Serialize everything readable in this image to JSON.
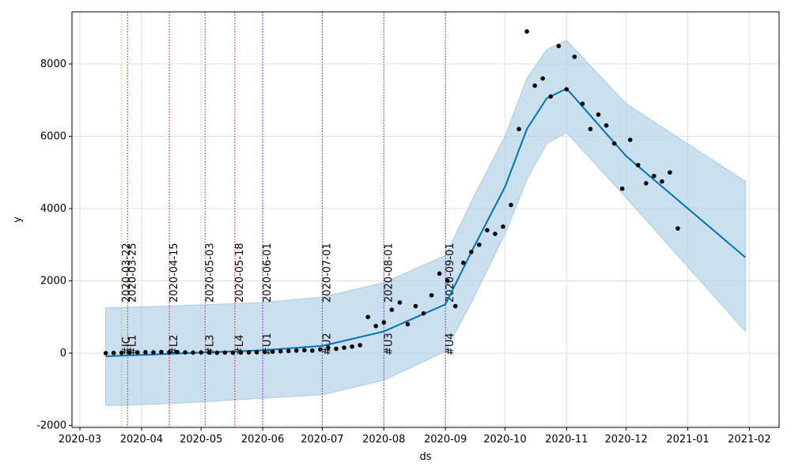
{
  "chart_data": {
    "type": "forecast",
    "xlabel": "ds",
    "ylabel": "y",
    "xlim": [
      "2020-02-26",
      "2021-02-16"
    ],
    "xticks": [
      {
        "value": "2020-03-01",
        "label": "2020-03"
      },
      {
        "value": "2020-04-01",
        "label": "2020-04"
      },
      {
        "value": "2020-05-01",
        "label": "2020-05"
      },
      {
        "value": "2020-06-01",
        "label": "2020-06"
      },
      {
        "value": "2020-07-01",
        "label": "2020-07"
      },
      {
        "value": "2020-08-01",
        "label": "2020-08"
      },
      {
        "value": "2020-09-01",
        "label": "2020-09"
      },
      {
        "value": "2020-10-01",
        "label": "2020-10"
      },
      {
        "value": "2020-11-01",
        "label": "2020-11"
      },
      {
        "value": "2020-12-01",
        "label": "2020-12"
      },
      {
        "value": "2021-01-01",
        "label": "2021-01"
      },
      {
        "value": "2021-02-01",
        "label": "2021-02"
      }
    ],
    "ylim": [
      -2055,
      9443
    ],
    "yticks": [
      -2000,
      0,
      2000,
      4000,
      6000,
      8000
    ],
    "grid": true,
    "point_color": "#000000",
    "x": [
      "2020-03-14",
      "2020-03-18",
      "2020-03-22",
      "2020-03-26",
      "2020-03-30",
      "2020-04-03",
      "2020-04-07",
      "2020-04-11",
      "2020-04-15",
      "2020-04-19",
      "2020-04-23",
      "2020-04-27",
      "2020-05-01",
      "2020-05-05",
      "2020-05-09",
      "2020-05-13",
      "2020-05-17",
      "2020-05-21",
      "2020-05-25",
      "2020-05-29",
      "2020-06-02",
      "2020-06-06",
      "2020-06-10",
      "2020-06-14",
      "2020-06-18",
      "2020-06-22",
      "2020-06-26",
      "2020-06-30",
      "2020-07-04",
      "2020-07-08",
      "2020-07-12",
      "2020-07-16",
      "2020-07-20",
      "2020-07-24",
      "2020-07-28",
      "2020-08-01",
      "2020-08-05",
      "2020-08-09",
      "2020-08-13",
      "2020-08-17",
      "2020-08-21",
      "2020-08-25",
      "2020-08-29",
      "2020-09-02",
      "2020-09-06",
      "2020-09-10",
      "2020-09-14",
      "2020-09-18",
      "2020-09-22",
      "2020-09-26",
      "2020-09-30",
      "2020-10-04",
      "2020-10-08",
      "2020-10-12",
      "2020-10-16",
      "2020-10-20",
      "2020-10-24",
      "2020-10-28",
      "2020-11-01",
      "2020-11-05",
      "2020-11-09",
      "2020-11-13",
      "2020-11-17",
      "2020-11-21",
      "2020-11-25",
      "2020-11-29",
      "2020-12-03",
      "2020-12-07",
      "2020-12-11",
      "2020-12-15",
      "2020-12-19",
      "2020-12-23",
      "2020-12-27"
    ],
    "values": [
      0,
      5,
      10,
      15,
      20,
      25,
      20,
      30,
      25,
      30,
      20,
      15,
      20,
      15,
      10,
      15,
      10,
      15,
      20,
      25,
      30,
      40,
      50,
      60,
      70,
      80,
      70,
      100,
      150,
      120,
      150,
      180,
      220,
      1000,
      750,
      850,
      1200,
      1400,
      800,
      1300,
      1100,
      1600,
      2200,
      2000,
      1300,
      2500,
      2800,
      3000,
      3400,
      3300,
      3500,
      4100,
      6200,
      8900,
      7400,
      7600,
      7100,
      8500,
      7300,
      8200,
      6900,
      6200,
      6600,
      6300,
      5800,
      4550,
      5900,
      5200,
      4700,
      4900,
      4750,
      5000,
      3450
    ],
    "forecast": {
      "color": "#0072b2",
      "band_color": "#a6cbe3",
      "x": [
        "2020-03-14",
        "2020-04-15",
        "2020-06-01",
        "2020-07-01",
        "2020-08-01",
        "2020-09-01",
        "2020-09-15",
        "2020-10-01",
        "2020-10-12",
        "2020-10-22",
        "2020-11-01",
        "2020-12-01",
        "2021-01-30"
      ],
      "values": [
        -87,
        -20,
        80,
        200,
        600,
        1350,
        2900,
        4600,
        6200,
        7050,
        7320,
        5450,
        2650
      ],
      "lower": [
        -1450,
        -1400,
        -1250,
        -1150,
        -750,
        50,
        1500,
        3300,
        4800,
        5800,
        6100,
        4300,
        600
      ],
      "upper": [
        1250,
        1300,
        1400,
        1550,
        1950,
        2700,
        4300,
        6000,
        7600,
        8400,
        8650,
        6900,
        4750
      ]
    },
    "events": [
      {
        "x": "2020-03-22",
        "date_label": "2020-03-22",
        "label": "#IC",
        "color": "#bcbd22"
      },
      {
        "x": "2020-03-25",
        "date_label": "2020-03-25",
        "label": "#L1",
        "color": "#e00000"
      },
      {
        "x": "2020-04-15",
        "date_label": "2020-04-15",
        "label": "#L2",
        "color": "#e00000"
      },
      {
        "x": "2020-05-03",
        "date_label": "2020-05-03",
        "label": "#L3",
        "color": "#e00000"
      },
      {
        "x": "2020-05-18",
        "date_label": "2020-05-18",
        "label": "#L4",
        "color": "#e00000"
      },
      {
        "x": "2020-06-01",
        "date_label": "2020-06-01",
        "label": "#U1",
        "color": "#9400d3"
      },
      {
        "x": "2020-07-01",
        "date_label": "2020-07-01",
        "label": "#U2",
        "color": "#9400d3"
      },
      {
        "x": "2020-08-01",
        "date_label": "2020-08-01",
        "label": "#U3",
        "color": "#9400d3"
      },
      {
        "x": "2020-09-01",
        "date_label": "2020-09-01",
        "label": "#U4",
        "color": "#9400d3"
      }
    ]
  }
}
